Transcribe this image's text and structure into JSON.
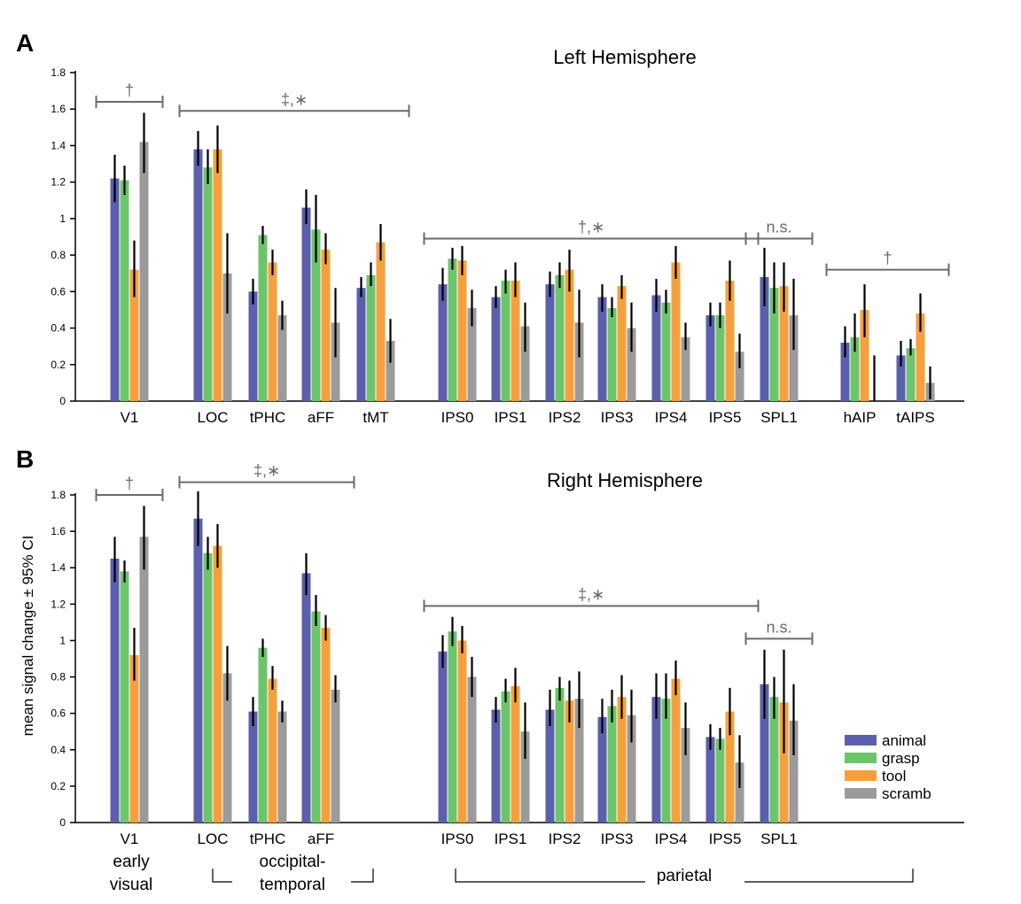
{
  "colors": {
    "animal": "#5b5fac",
    "grasp": "#6cc56b",
    "tool": "#f6a03d",
    "scramb": "#9b9b9b",
    "errbar": "#000000",
    "bracket": "#6b6b6b"
  },
  "legend": [
    {
      "name": "animal",
      "color": "#5b5fac"
    },
    {
      "name": "grasp",
      "color": "#6cc56b"
    },
    {
      "name": "tool",
      "color": "#f6a03d"
    },
    {
      "name": "scramb",
      "color": "#9b9b9b"
    }
  ],
  "ylabel": "mean signal change ± 95% CI",
  "groups": [
    "early visual",
    "occipital-temporal",
    "parietal"
  ],
  "chart_data": [
    {
      "type": "bar",
      "panel_label": "A",
      "title": "Left Hemisphere",
      "ylim": [
        0,
        1.8
      ],
      "yticks": [
        "0",
        "0.2",
        "0.4",
        "0.6",
        "0.8",
        "1",
        "1.2",
        "1.4",
        "1.6",
        "1.8"
      ],
      "categories": [
        "V1",
        "LOC",
        "tPHC",
        "aFF",
        "tMT",
        "IPS0",
        "IPS1",
        "IPS2",
        "IPS3",
        "IPS4",
        "IPS5",
        "SPL1",
        "hAIP",
        "tAIPS"
      ],
      "series": [
        {
          "name": "animal",
          "values": [
            1.22,
            1.38,
            0.6,
            1.06,
            0.62,
            0.64,
            0.57,
            0.64,
            0.57,
            0.58,
            0.47,
            0.68,
            0.32,
            0.25
          ],
          "ci": [
            [
              1.09,
              1.35
            ],
            [
              1.29,
              1.48
            ],
            [
              0.53,
              0.67
            ],
            [
              0.97,
              1.16
            ],
            [
              0.57,
              0.68
            ],
            [
              0.55,
              0.73
            ],
            [
              0.51,
              0.63
            ],
            [
              0.57,
              0.71
            ],
            [
              0.49,
              0.64
            ],
            [
              0.49,
              0.67
            ],
            [
              0.41,
              0.54
            ],
            [
              0.52,
              0.84
            ],
            [
              0.24,
              0.41
            ],
            [
              0.19,
              0.33
            ]
          ]
        },
        {
          "name": "grasp",
          "values": [
            1.21,
            1.28,
            0.91,
            0.94,
            0.69,
            0.78,
            0.66,
            0.69,
            0.51,
            0.54,
            0.47,
            0.62,
            0.35,
            0.29
          ],
          "ci": [
            [
              1.13,
              1.29
            ],
            [
              1.19,
              1.38
            ],
            [
              0.86,
              0.96
            ],
            [
              0.76,
              1.13
            ],
            [
              0.63,
              0.76
            ],
            [
              0.72,
              0.84
            ],
            [
              0.59,
              0.72
            ],
            [
              0.62,
              0.76
            ],
            [
              0.46,
              0.57
            ],
            [
              0.48,
              0.61
            ],
            [
              0.4,
              0.54
            ],
            [
              0.48,
              0.76
            ],
            [
              0.27,
              0.48
            ],
            [
              0.25,
              0.34
            ]
          ]
        },
        {
          "name": "tool",
          "values": [
            0.72,
            1.38,
            0.76,
            0.83,
            0.87,
            0.77,
            0.66,
            0.72,
            0.63,
            0.76,
            0.66,
            0.63,
            0.5,
            0.48
          ],
          "ci": [
            [
              0.57,
              0.88
            ],
            [
              1.25,
              1.51
            ],
            [
              0.69,
              0.83
            ],
            [
              0.75,
              0.92
            ],
            [
              0.77,
              0.97
            ],
            [
              0.69,
              0.85
            ],
            [
              0.57,
              0.76
            ],
            [
              0.6,
              0.83
            ],
            [
              0.56,
              0.69
            ],
            [
              0.67,
              0.85
            ],
            [
              0.55,
              0.77
            ],
            [
              0.49,
              0.76
            ],
            [
              0.35,
              0.64
            ],
            [
              0.38,
              0.59
            ]
          ]
        },
        {
          "name": "scramb",
          "values": [
            1.42,
            0.7,
            0.47,
            0.43,
            0.33,
            0.51,
            0.41,
            0.43,
            0.4,
            0.35,
            0.27,
            0.47,
            0.0,
            0.1
          ],
          "ci": [
            [
              1.25,
              1.58
            ],
            [
              0.48,
              0.92
            ],
            [
              0.39,
              0.55
            ],
            [
              0.24,
              0.62
            ],
            [
              0.21,
              0.45
            ],
            [
              0.41,
              0.61
            ],
            [
              0.27,
              0.54
            ],
            [
              0.24,
              0.61
            ],
            [
              0.27,
              0.54
            ],
            [
              0.28,
              0.43
            ],
            [
              0.18,
              0.37
            ],
            [
              0.28,
              0.67
            ],
            [
              0.0,
              0.25
            ],
            [
              0.01,
              0.19
            ]
          ]
        }
      ],
      "annotations": [
        {
          "text": "†",
          "from": "V1",
          "to": "V1",
          "y": 1.64
        },
        {
          "text": "‡,∗",
          "from": "LOC",
          "to": "tMT",
          "y": 1.59
        },
        {
          "text": "†,∗",
          "from": "IPS0",
          "to": "IPS5",
          "y": 0.89
        },
        {
          "text": "n.s.",
          "from": "SPL1",
          "to": "SPL1",
          "y": 0.89
        },
        {
          "text": "†",
          "from": "hAIP",
          "to": "tAIPS",
          "y": 0.72
        }
      ]
    },
    {
      "type": "bar",
      "panel_label": "B",
      "title": "Right Hemisphere",
      "ylim": [
        0,
        1.8
      ],
      "yticks": [
        "0",
        "0.2",
        "0.4",
        "0.6",
        "0.8",
        "1",
        "1.2",
        "1.4",
        "1.6",
        "1.8"
      ],
      "categories": [
        "V1",
        "LOC",
        "tPHC",
        "aFF",
        "IPS0",
        "IPS1",
        "IPS2",
        "IPS3",
        "IPS4",
        "IPS5",
        "SPL1"
      ],
      "series": [
        {
          "name": "animal",
          "values": [
            1.45,
            1.67,
            0.61,
            1.37,
            0.94,
            0.62,
            0.62,
            0.58,
            0.69,
            0.47,
            0.76
          ],
          "ci": [
            [
              1.32,
              1.57
            ],
            [
              1.52,
              1.82
            ],
            [
              0.53,
              0.69
            ],
            [
              1.25,
              1.48
            ],
            [
              0.85,
              1.03
            ],
            [
              0.55,
              0.69
            ],
            [
              0.53,
              0.73
            ],
            [
              0.49,
              0.68
            ],
            [
              0.57,
              0.82
            ],
            [
              0.4,
              0.54
            ],
            [
              0.57,
              0.95
            ]
          ]
        },
        {
          "name": "grasp",
          "values": [
            1.38,
            1.48,
            0.96,
            1.16,
            1.05,
            0.72,
            0.74,
            0.64,
            0.68,
            0.46,
            0.69
          ],
          "ci": [
            [
              1.32,
              1.44
            ],
            [
              1.39,
              1.57
            ],
            [
              0.91,
              1.01
            ],
            [
              1.08,
              1.25
            ],
            [
              0.97,
              1.13
            ],
            [
              0.66,
              0.79
            ],
            [
              0.67,
              0.8
            ],
            [
              0.55,
              0.73
            ],
            [
              0.57,
              0.82
            ],
            [
              0.4,
              0.52
            ],
            [
              0.57,
              0.8
            ]
          ]
        },
        {
          "name": "tool",
          "values": [
            0.92,
            1.52,
            0.79,
            1.07,
            1.0,
            0.75,
            0.67,
            0.69,
            0.79,
            0.61,
            0.66
          ],
          "ci": [
            [
              0.78,
              1.07
            ],
            [
              1.4,
              1.64
            ],
            [
              0.73,
              0.86
            ],
            [
              1.0,
              1.14
            ],
            [
              0.93,
              1.08
            ],
            [
              0.66,
              0.85
            ],
            [
              0.55,
              0.78
            ],
            [
              0.57,
              0.81
            ],
            [
              0.7,
              0.89
            ],
            [
              0.48,
              0.74
            ],
            [
              0.38,
              0.95
            ]
          ]
        },
        {
          "name": "scramb",
          "values": [
            1.57,
            0.82,
            0.61,
            0.73,
            0.8,
            0.5,
            0.68,
            0.59,
            0.52,
            0.33,
            0.56
          ],
          "ci": [
            [
              1.39,
              1.74
            ],
            [
              0.67,
              0.97
            ],
            [
              0.55,
              0.67
            ],
            [
              0.66,
              0.81
            ],
            [
              0.69,
              0.91
            ],
            [
              0.35,
              0.66
            ],
            [
              0.52,
              0.83
            ],
            [
              0.44,
              0.73
            ],
            [
              0.37,
              0.66
            ],
            [
              0.19,
              0.48
            ],
            [
              0.37,
              0.76
            ]
          ]
        }
      ],
      "annotations": [
        {
          "text": "†",
          "from": "V1",
          "to": "V1",
          "y": 1.8
        },
        {
          "text": "‡,∗",
          "from": "LOC",
          "to": "aFF",
          "y": 1.87
        },
        {
          "text": "‡,∗",
          "from": "IPS0",
          "to": "IPS5",
          "y": 1.19
        },
        {
          "text": "n.s.",
          "from": "SPL1",
          "to": "SPL1",
          "y": 1.01
        }
      ]
    }
  ]
}
